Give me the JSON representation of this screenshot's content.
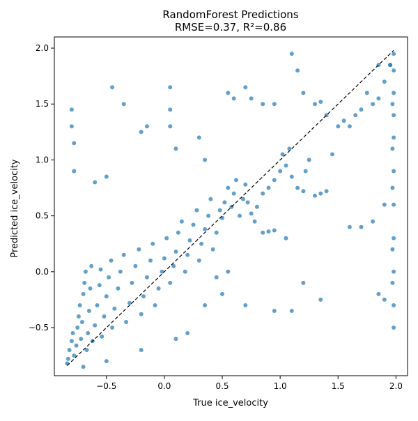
{
  "chart_data": {
    "type": "scatter",
    "title": "RandomForest Predictions",
    "subtitle": "RMSE=0.37, R²=0.86",
    "xlabel": "True ice_velocity",
    "ylabel": "Predicted ice_velocity",
    "xlim": [
      -0.95,
      2.1
    ],
    "ylim": [
      -0.93,
      2.1
    ],
    "xticks": [
      -0.5,
      0.0,
      0.5,
      1.0,
      1.5,
      2.0
    ],
    "yticks": [
      -0.5,
      0.0,
      0.5,
      1.0,
      1.5,
      2.0
    ],
    "xtick_labels": [
      "−0.5",
      "0.0",
      "0.5",
      "1.0",
      "1.5",
      "2.0"
    ],
    "ytick_labels": [
      "−0.5",
      "0.0",
      "0.5",
      "1.0",
      "1.5",
      "2.0"
    ],
    "point_color": "#1f77b4",
    "reference_line": {
      "style": "dashed",
      "color": "#000000",
      "from": [
        -0.84,
        -0.84
      ],
      "to": [
        1.98,
        1.98
      ]
    },
    "series": [
      {
        "values": [
          [
            -0.84,
            -0.82
          ],
          [
            -0.83,
            -0.78
          ],
          [
            -0.82,
            -0.7
          ],
          [
            -0.8,
            -0.62
          ],
          [
            -0.79,
            -0.55
          ],
          [
            -0.78,
            -0.75
          ],
          [
            -0.76,
            -0.66
          ],
          [
            -0.75,
            -0.5
          ],
          [
            -0.74,
            -0.4
          ],
          [
            -0.73,
            -0.3
          ],
          [
            -0.72,
            -0.6
          ],
          [
            -0.71,
            -0.45
          ],
          [
            -0.7,
            -0.2
          ],
          [
            -0.69,
            -0.1
          ],
          [
            -0.68,
            0.0
          ],
          [
            -0.67,
            -0.7
          ],
          [
            -0.66,
            -0.55
          ],
          [
            -0.65,
            -0.35
          ],
          [
            -0.64,
            -0.15
          ],
          [
            -0.63,
            0.05
          ],
          [
            -0.62,
            -0.62
          ],
          [
            -0.6,
            -0.48
          ],
          [
            -0.58,
            -0.3
          ],
          [
            -0.56,
            -0.12
          ],
          [
            -0.55,
            0.02
          ],
          [
            -0.54,
            -0.58
          ],
          [
            -0.52,
            -0.4
          ],
          [
            -0.5,
            -0.22
          ],
          [
            -0.48,
            -0.05
          ],
          [
            -0.46,
            0.1
          ],
          [
            -0.45,
            -0.5
          ],
          [
            -0.43,
            -0.33
          ],
          [
            -0.4,
            -0.15
          ],
          [
            -0.38,
            0.0
          ],
          [
            -0.35,
            0.15
          ],
          [
            -0.33,
            -0.45
          ],
          [
            -0.3,
            -0.28
          ],
          [
            -0.28,
            -0.1
          ],
          [
            -0.25,
            0.05
          ],
          [
            -0.22,
            0.2
          ],
          [
            -0.2,
            -0.38
          ],
          [
            -0.18,
            -0.22
          ],
          [
            -0.15,
            -0.05
          ],
          [
            -0.12,
            0.1
          ],
          [
            -0.1,
            0.25
          ],
          [
            -0.08,
            -0.3
          ],
          [
            -0.05,
            -0.15
          ],
          [
            -0.02,
            0.0
          ],
          [
            0.0,
            0.12
          ],
          [
            0.02,
            0.3
          ],
          [
            0.05,
            -0.1
          ],
          [
            0.08,
            0.05
          ],
          [
            0.1,
            0.18
          ],
          [
            0.12,
            0.35
          ],
          [
            0.15,
            0.45
          ],
          [
            0.18,
            0.0
          ],
          [
            0.2,
            0.15
          ],
          [
            0.22,
            0.28
          ],
          [
            0.25,
            0.42
          ],
          [
            0.28,
            0.55
          ],
          [
            0.3,
            0.1
          ],
          [
            0.32,
            0.25
          ],
          [
            0.35,
            0.38
          ],
          [
            0.38,
            0.5
          ],
          [
            0.4,
            0.65
          ],
          [
            0.42,
            0.2
          ],
          [
            0.45,
            0.35
          ],
          [
            0.48,
            0.55
          ],
          [
            0.5,
            0.48
          ],
          [
            0.52,
            0.62
          ],
          [
            0.55,
            0.75
          ],
          [
            0.58,
            0.58
          ],
          [
            0.6,
            0.7
          ],
          [
            0.62,
            0.82
          ],
          [
            0.65,
            0.5
          ],
          [
            0.68,
            0.65
          ],
          [
            0.7,
            0.78
          ],
          [
            0.72,
            0.62
          ],
          [
            0.75,
            0.52
          ],
          [
            0.78,
            0.45
          ],
          [
            0.8,
            0.58
          ],
          [
            0.85,
            0.7
          ],
          [
            0.9,
            0.75
          ],
          [
            0.95,
            0.82
          ],
          [
            1.0,
            0.9
          ],
          [
            1.02,
            1.05
          ],
          [
            1.05,
            0.95
          ],
          [
            1.08,
            1.1
          ],
          [
            1.1,
            0.85
          ],
          [
            1.15,
            0.75
          ],
          [
            1.2,
            0.72
          ],
          [
            1.22,
            0.9
          ],
          [
            1.25,
            1.0
          ],
          [
            1.3,
            0.68
          ],
          [
            1.35,
            0.7
          ],
          [
            1.4,
            0.72
          ],
          [
            1.45,
            1.05
          ],
          [
            1.5,
            1.3
          ],
          [
            1.55,
            1.35
          ],
          [
            1.6,
            1.3
          ],
          [
            1.65,
            1.4
          ],
          [
            1.7,
            1.45
          ],
          [
            1.75,
            1.6
          ],
          [
            1.8,
            1.5
          ],
          [
            1.85,
            1.55
          ],
          [
            1.9,
            1.7
          ],
          [
            1.95,
            1.85
          ],
          [
            -0.78,
            0.9
          ],
          [
            -0.8,
            1.3
          ],
          [
            -0.8,
            1.45
          ],
          [
            -0.78,
            1.15
          ],
          [
            -0.6,
            0.8
          ],
          [
            -0.5,
            0.85
          ],
          [
            -0.45,
            1.65
          ],
          [
            -0.35,
            1.5
          ],
          [
            -0.2,
            1.25
          ],
          [
            -0.15,
            1.3
          ],
          [
            0.05,
            1.65
          ],
          [
            0.05,
            1.45
          ],
          [
            0.05,
            1.3
          ],
          [
            0.1,
            1.1
          ],
          [
            0.3,
            1.2
          ],
          [
            0.35,
            1.0
          ],
          [
            0.55,
            1.6
          ],
          [
            0.6,
            1.55
          ],
          [
            0.7,
            1.65
          ],
          [
            0.75,
            1.55
          ],
          [
            0.85,
            1.5
          ],
          [
            0.95,
            1.5
          ],
          [
            1.1,
            1.95
          ],
          [
            1.15,
            1.8
          ],
          [
            1.3,
            1.5
          ],
          [
            1.35,
            1.52
          ],
          [
            1.4,
            1.4
          ],
          [
            1.2,
            1.6
          ],
          [
            1.85,
            1.85
          ],
          [
            1.95,
            1.85
          ],
          [
            -0.7,
            -0.85
          ],
          [
            -0.5,
            -0.8
          ],
          [
            -0.2,
            -0.7
          ],
          [
            0.1,
            -0.6
          ],
          [
            0.2,
            -0.55
          ],
          [
            0.35,
            -0.3
          ],
          [
            0.5,
            -0.2
          ],
          [
            0.7,
            -0.3
          ],
          [
            0.95,
            -0.35
          ],
          [
            1.1,
            -0.35
          ],
          [
            1.2,
            -0.1
          ],
          [
            1.35,
            -0.25
          ],
          [
            0.45,
            -0.05
          ],
          [
            0.55,
            0.0
          ],
          [
            0.85,
            0.35
          ],
          [
            0.9,
            0.36
          ],
          [
            0.95,
            0.37
          ],
          [
            1.05,
            0.3
          ],
          [
            1.6,
            0.4
          ],
          [
            1.7,
            0.4
          ],
          [
            1.8,
            0.45
          ],
          [
            1.9,
            0.6
          ],
          [
            1.85,
            -0.2
          ],
          [
            1.9,
            -0.25
          ],
          [
            1.98,
            -0.5
          ],
          [
            1.98,
            -0.3
          ],
          [
            1.98,
            0.0
          ],
          [
            1.98,
            0.3
          ],
          [
            1.98,
            0.6
          ],
          [
            1.98,
            0.9
          ],
          [
            1.98,
            1.2
          ],
          [
            1.98,
            1.4
          ],
          [
            1.98,
            1.6
          ],
          [
            1.98,
            1.8
          ],
          [
            1.98,
            1.95
          ],
          [
            1.97,
            1.1
          ],
          [
            1.97,
            0.75
          ],
          [
            1.97,
            1.5
          ],
          [
            1.97,
            -0.1
          ],
          [
            1.97,
            0.2
          ]
        ]
      }
    ]
  }
}
